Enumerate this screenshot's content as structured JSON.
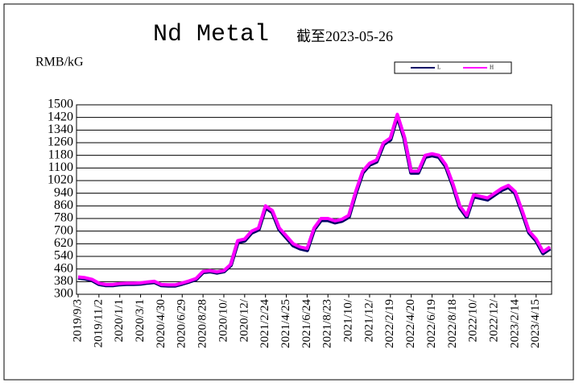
{
  "chart_data": {
    "type": "line",
    "title": "Nd Metal",
    "subtitle": "截至2023-05-26",
    "y_label": "RMB/kG",
    "categories": [
      "2019/9/3",
      null,
      null,
      "2019/11/2",
      null,
      null,
      "2020/1/1",
      null,
      null,
      "2020/3/1",
      null,
      null,
      "2020/4/30",
      null,
      null,
      "2020/6/29",
      null,
      null,
      "2020/8/28",
      null,
      null,
      "2020/10/",
      null,
      null,
      "2020/12/",
      null,
      null,
      "2021/2/24",
      null,
      null,
      "2021/4/25",
      null,
      null,
      "2021/6/24",
      null,
      null,
      "2021/8/23",
      null,
      null,
      "2021/10/",
      null,
      null,
      "2021/12/",
      null,
      null,
      "2022/2/19",
      null,
      null,
      "2022/4/20",
      null,
      null,
      "2022/6/19",
      null,
      null,
      "2022/8/18",
      null,
      null,
      "2022/10/",
      null,
      null,
      "2022/12/",
      null,
      null,
      "2023/2/14",
      null,
      null,
      "2023/4/15",
      null,
      null
    ],
    "series": [
      {
        "name": "L",
        "color": "#000066",
        "values": [
          405,
          400,
          390,
          365,
          357,
          357,
          363,
          365,
          365,
          367,
          373,
          377,
          357,
          355,
          355,
          367,
          380,
          395,
          440,
          445,
          437,
          445,
          485,
          630,
          640,
          690,
          710,
          850,
          820,
          710,
          660,
          610,
          590,
          580,
          710,
          770,
          770,
          755,
          765,
          790,
          940,
          1070,
          1120,
          1140,
          1250,
          1280,
          1430,
          1290,
          1070,
          1070,
          1170,
          1180,
          1170,
          1110,
          990,
          850,
          790,
          920,
          910,
          900,
          930,
          960,
          980,
          940,
          820,
          690,
          640,
          560,
          590
        ]
      },
      {
        "name": "H",
        "color": "#ff00ff",
        "values": [
          410,
          405,
          395,
          370,
          362,
          362,
          368,
          370,
          370,
          372,
          378,
          382,
          362,
          360,
          360,
          372,
          385,
          400,
          445,
          450,
          442,
          450,
          490,
          640,
          650,
          700,
          720,
          860,
          830,
          720,
          670,
          620,
          600,
          590,
          720,
          780,
          780,
          765,
          775,
          800,
          950,
          1080,
          1130,
          1150,
          1260,
          1290,
          1440,
          1300,
          1080,
          1080,
          1180,
          1190,
          1180,
          1120,
          1000,
          860,
          800,
          930,
          920,
          910,
          940,
          970,
          990,
          950,
          830,
          700,
          650,
          570,
          600
        ]
      }
    ],
    "ylim": [
      300,
      1500
    ],
    "yticks": [
      300,
      380,
      460,
      540,
      620,
      700,
      780,
      860,
      940,
      1020,
      1100,
      1180,
      1260,
      1340,
      1420,
      1500
    ],
    "grid": true
  }
}
